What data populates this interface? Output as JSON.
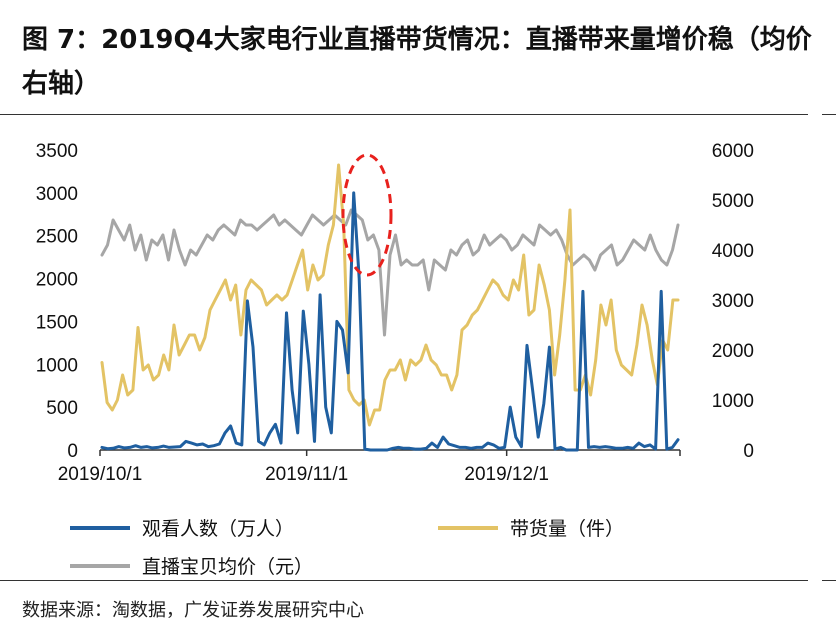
{
  "title": "图 7：2019Q4大家电行业直播带货情况：直播带来量增价稳（均价右轴）",
  "source": "数据来源：淘数据，广发证券发展研究中心",
  "chart_data": {
    "type": "line",
    "title": "图 7：2019Q4大家电行业直播带货情况：直播带来量增价稳（均价右轴）",
    "x_ticks": [
      "2019/10/1",
      "2019/11/1",
      "2019/12/1"
    ],
    "x_range_days": [
      0,
      87
    ],
    "y_left": {
      "range": [
        0,
        3500
      ],
      "ticks": [
        0,
        500,
        1000,
        1500,
        2000,
        2500,
        3000,
        3500
      ]
    },
    "y_right": {
      "range": [
        0,
        6000
      ],
      "ticks": [
        0,
        1000,
        2000,
        3000,
        4000,
        5000,
        6000
      ]
    },
    "series": [
      {
        "name": "观看人数（万人）",
        "axis": "left",
        "color": "#1f5fa0",
        "values": [
          30,
          15,
          20,
          40,
          25,
          30,
          50,
          30,
          40,
          25,
          30,
          45,
          30,
          35,
          40,
          100,
          80,
          60,
          70,
          40,
          50,
          70,
          200,
          280,
          80,
          60,
          1740,
          1200,
          100,
          60,
          200,
          300,
          80,
          1600,
          700,
          200,
          1620,
          1000,
          100,
          1810,
          500,
          200,
          1500,
          1400,
          900,
          3000,
          2000,
          10,
          0,
          0,
          0,
          0,
          20,
          30,
          20,
          20,
          10,
          10,
          20,
          80,
          30,
          150,
          70,
          50,
          30,
          30,
          20,
          30,
          30,
          80,
          60,
          20,
          30,
          500,
          150,
          40,
          1220,
          700,
          150,
          540,
          1200,
          10,
          30,
          0,
          0,
          0,
          1850,
          30,
          40,
          30,
          40,
          30,
          20,
          20,
          30,
          20,
          80,
          40,
          60,
          10,
          1850,
          10,
          30,
          120
        ]
      },
      {
        "name": "带货量（件）",
        "axis": "right",
        "color": "#e3c365",
        "values": [
          1750,
          950,
          800,
          1000,
          1500,
          1100,
          1200,
          2450,
          1600,
          1700,
          1400,
          1500,
          1900,
          1600,
          2500,
          1900,
          2100,
          2300,
          2300,
          2000,
          2250,
          2800,
          3000,
          3200,
          3400,
          3000,
          3300,
          2300,
          3200,
          3400,
          3300,
          3200,
          2900,
          3000,
          3100,
          3000,
          3100,
          3400,
          3700,
          4000,
          3200,
          3700,
          3400,
          3500,
          4100,
          4500,
          5700,
          4500,
          1200,
          1000,
          900,
          1000,
          500,
          800,
          800,
          1400,
          1600,
          1600,
          1800,
          1400,
          1800,
          1700,
          1800,
          2100,
          1800,
          1700,
          1500,
          1500,
          1200,
          1500,
          2400,
          2500,
          2700,
          2800,
          3000,
          3200,
          3400,
          3300,
          3100,
          3000,
          3400,
          3200,
          3900,
          2700,
          2800,
          3700,
          3300,
          2800,
          1500,
          2300,
          3400,
          4800,
          1200,
          1200,
          1500,
          1100,
          1800,
          2900,
          2500,
          3000,
          2000,
          1700,
          1600,
          1500,
          2100,
          2900,
          2500,
          1800,
          1300,
          2200,
          2000,
          3000,
          3000
        ]
      },
      {
        "name": "直播宝贝均价（元）",
        "axis": "right",
        "color": "#a6a6a6",
        "values": [
          3900,
          4100,
          4600,
          4400,
          4200,
          4500,
          4000,
          4300,
          3800,
          4200,
          4100,
          4300,
          3800,
          4400,
          4000,
          3700,
          4000,
          3900,
          4100,
          4300,
          4200,
          4400,
          4500,
          4400,
          4300,
          4600,
          4500,
          4500,
          4400,
          4500,
          4600,
          4700,
          4500,
          4600,
          4500,
          4400,
          4300,
          4500,
          4700,
          4600,
          4500,
          4600,
          4700,
          4600,
          4500,
          4800,
          4700,
          4600,
          4200,
          4300,
          4000,
          2300,
          3900,
          4300,
          3700,
          3800,
          3700,
          3700,
          3800,
          3200,
          3800,
          3700,
          3600,
          4000,
          3900,
          4100,
          4200,
          3900,
          4000,
          4300,
          4100,
          4200,
          4300,
          4200,
          4000,
          4100,
          4300,
          4200,
          4100,
          4500,
          4400,
          4300,
          4400,
          4200,
          3900,
          3700,
          3800,
          3900,
          3800,
          3600,
          3900,
          4000,
          4100,
          3700,
          3800,
          4000,
          4200,
          4100,
          4000,
          4300,
          4000,
          3800,
          3700,
          4000,
          4500
        ]
      }
    ],
    "legend_position": "bottom",
    "grid": false
  }
}
